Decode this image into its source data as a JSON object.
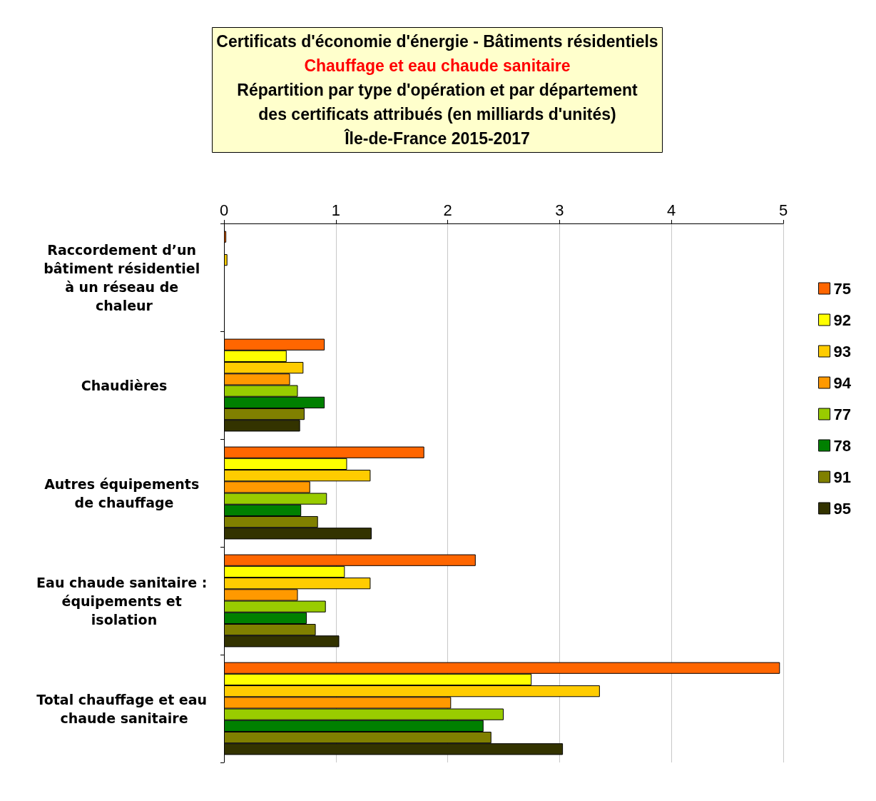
{
  "chart_data": {
    "type": "bar",
    "orientation": "horizontal",
    "title": "Certificats d'économie d'énergie - Bâtiments résidentiels",
    "subtitle": "Chauffage et eau chaude sanitaire",
    "annotations": [
      "Répartition par type d'opération et par département",
      "des certificats attribués (en milliards d'unités)",
      "Île-de-France 2015-2017"
    ],
    "categories": [
      "Raccordement d’un bâtiment résidentiel à un réseau de chaleur",
      "Chaudières",
      "Autres équipements de chauffage",
      "Eau chaude sanitaire : équipements et isolation",
      "Total chauffage et eau chaude sanitaire"
    ],
    "series": [
      {
        "name": "75",
        "color": "#ff6600",
        "values": [
          0.02,
          0.9,
          1.79,
          2.25,
          4.97
        ]
      },
      {
        "name": "92",
        "color": "#ffff00",
        "values": [
          null,
          0.56,
          1.1,
          1.08,
          2.75
        ]
      },
      {
        "name": "93",
        "color": "#ffcc00",
        "values": [
          0.03,
          0.71,
          1.31,
          1.31,
          3.36
        ]
      },
      {
        "name": "94",
        "color": "#ff9900",
        "values": [
          null,
          0.59,
          0.77,
          0.66,
          2.03
        ]
      },
      {
        "name": "77",
        "color": "#99cc00",
        "values": [
          null,
          0.66,
          0.92,
          0.91,
          2.5
        ]
      },
      {
        "name": "78",
        "color": "#008000",
        "values": [
          null,
          0.9,
          0.69,
          0.74,
          2.32
        ]
      },
      {
        "name": "91",
        "color": "#808000",
        "values": [
          null,
          0.72,
          0.84,
          0.82,
          2.39
        ]
      },
      {
        "name": "95",
        "color": "#333300",
        "values": [
          null,
          0.68,
          1.32,
          1.03,
          3.03
        ]
      }
    ],
    "xlim": [
      0,
      5
    ],
    "xticks": [
      0,
      1,
      2,
      3,
      4,
      5
    ],
    "grid": "x",
    "legend": "right"
  }
}
